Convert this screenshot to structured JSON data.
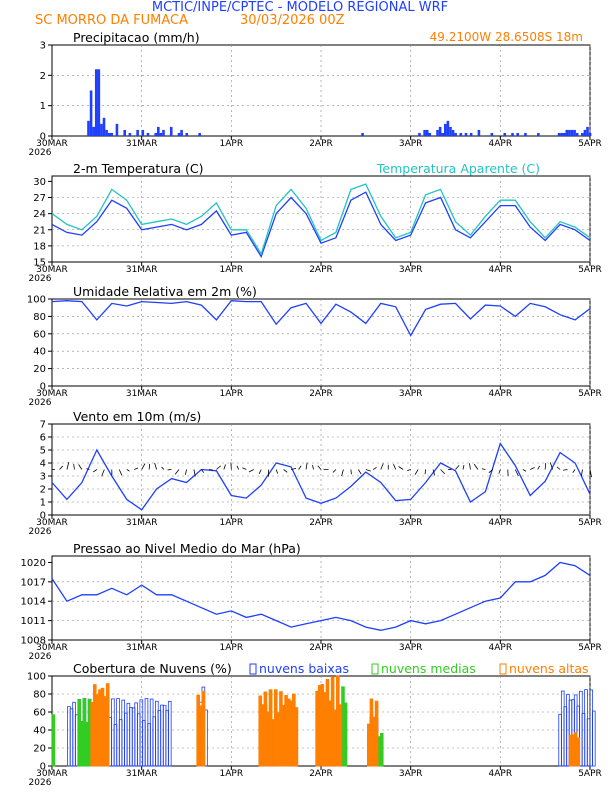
{
  "header": {
    "title": "MCTIC/INPE/CPTEC - MODELO REGIONAL WRF",
    "location": "SC MORRO DA FUMACA",
    "run": "30/03/2026 00Z",
    "coords": "49.2100W 28.6508S 18m"
  },
  "colors": {
    "title": "#1f3fff",
    "orange": "#ff7f00",
    "blue": "#1f3fff",
    "cyan": "#22c3c3",
    "green": "#33cc22",
    "grid": "#888888"
  },
  "x_axis": {
    "labels": [
      "30MAR",
      "31MAR",
      "1APR",
      "2APR",
      "3APR",
      "4APR",
      "5APR"
    ],
    "year": "2026",
    "hours": 144
  },
  "chart_data": [
    {
      "id": "precip",
      "type": "bar",
      "title": "Precipitacao (mm/h)",
      "ylim": [
        0,
        3
      ],
      "yticks": [
        0,
        1,
        2,
        3
      ],
      "x": [
        14,
        15,
        16,
        17,
        18,
        19,
        20,
        21,
        22,
        23,
        25,
        28,
        30,
        33,
        35,
        37,
        40,
        41,
        42,
        43,
        46,
        49,
        50,
        52,
        57,
        120,
        142,
        144,
        145,
        146,
        149,
        150,
        151,
        152,
        153,
        154,
        155,
        156,
        158,
        160,
        162,
        165,
        170,
        175,
        178,
        180,
        183,
        188,
        196,
        197,
        198,
        199,
        200,
        201,
        202,
        203,
        205,
        206,
        207,
        208
      ],
      "values": [
        0.5,
        1.5,
        0.3,
        2.2,
        2.2,
        0.4,
        0.6,
        0.2,
        0.1,
        0.1,
        0.4,
        0.2,
        0.1,
        0.2,
        0.2,
        0.1,
        0.1,
        0.3,
        0.1,
        0.2,
        0.3,
        0.1,
        0.2,
        0.1,
        0.1,
        0.1,
        0.1,
        0.2,
        0.2,
        0.1,
        0.2,
        0.3,
        0.1,
        0.4,
        0.5,
        0.3,
        0.2,
        0.1,
        0.1,
        0.1,
        0.1,
        0.2,
        0.1,
        0.1,
        0.1,
        0.1,
        0.1,
        0.1,
        0.1,
        0.1,
        0.1,
        0.2,
        0.2,
        0.2,
        0.2,
        0.1,
        0.1,
        0.2,
        0.3,
        0.1
      ]
    },
    {
      "id": "temp",
      "type": "line",
      "title": "2-m Temperatura (C)",
      "legend_right": "Temperatura Aparente (C)",
      "ylim": [
        15,
        31
      ],
      "yticks": [
        15,
        18,
        21,
        24,
        27,
        30
      ],
      "series": [
        {
          "name": "2-m Temperatura (C)",
          "color": "blue",
          "x": [
            0,
            4,
            8,
            12,
            16,
            20,
            24,
            28,
            32,
            36,
            40,
            44,
            48,
            52,
            56,
            60,
            64,
            68,
            72,
            76,
            80,
            84,
            88,
            92,
            96,
            100,
            104,
            108,
            112,
            116,
            120,
            124,
            128,
            132,
            136,
            140,
            144
          ],
          "values": [
            22,
            20.5,
            20,
            22.5,
            26.5,
            25,
            21,
            21.5,
            22,
            21,
            22,
            24.5,
            20,
            20.5,
            16,
            24,
            27,
            24,
            18.5,
            19.5,
            26.5,
            28,
            22,
            19,
            20,
            26,
            27,
            21,
            19.5,
            22.5,
            25.5,
            25.5,
            21.5,
            19,
            22,
            21,
            19
          ]
        },
        {
          "name": "Temperatura Aparente (C)",
          "color": "cyan",
          "x": [
            0,
            4,
            8,
            12,
            16,
            20,
            24,
            28,
            32,
            36,
            40,
            44,
            48,
            52,
            56,
            60,
            64,
            68,
            72,
            76,
            80,
            84,
            88,
            92,
            96,
            100,
            104,
            108,
            112,
            116,
            120,
            124,
            128,
            132,
            136,
            140,
            144
          ],
          "values": [
            24,
            22,
            21,
            23.5,
            28.5,
            26.5,
            22,
            22.5,
            23,
            22,
            23.5,
            26,
            21,
            21,
            16.5,
            25.5,
            28.5,
            25,
            19,
            20.5,
            28.5,
            29.5,
            23.5,
            19.5,
            20.5,
            27.5,
            28.5,
            22.5,
            20,
            23.5,
            26.5,
            26.5,
            22.5,
            19.5,
            22.5,
            21.5,
            19.5
          ]
        }
      ]
    },
    {
      "id": "humidity",
      "type": "line",
      "title": "Umidade Relativa em 2m (%)",
      "ylim": [
        0,
        100
      ],
      "yticks": [
        0,
        20,
        40,
        60,
        80,
        100
      ],
      "series": [
        {
          "name": "Umidade Relativa em 2m (%)",
          "color": "blue",
          "x": [
            0,
            4,
            8,
            12,
            16,
            20,
            24,
            28,
            32,
            36,
            40,
            44,
            48,
            52,
            56,
            60,
            64,
            68,
            72,
            76,
            80,
            84,
            88,
            92,
            96,
            100,
            104,
            108,
            112,
            116,
            120,
            124,
            128,
            132,
            136,
            140,
            144
          ],
          "values": [
            97,
            98,
            97,
            76,
            95,
            92,
            97,
            96,
            95,
            97,
            93,
            76,
            98,
            97,
            97,
            71,
            90,
            95,
            72,
            94,
            85,
            72,
            95,
            91,
            58,
            88,
            94,
            95,
            77,
            93,
            92,
            80,
            95,
            91,
            82,
            76,
            89
          ]
        }
      ]
    },
    {
      "id": "wind",
      "type": "line",
      "title": "Vento em 10m (m/s)",
      "ylim": [
        0,
        7
      ],
      "yticks": [
        0,
        1,
        2,
        3,
        4,
        5,
        6,
        7
      ],
      "arrow_level": 3.5,
      "series": [
        {
          "name": "Vento em 10m (m/s)",
          "color": "blue",
          "x": [
            0,
            4,
            8,
            12,
            16,
            20,
            24,
            28,
            32,
            36,
            40,
            44,
            48,
            52,
            56,
            60,
            64,
            68,
            72,
            76,
            80,
            84,
            88,
            92,
            96,
            100,
            104,
            108,
            112,
            116,
            120,
            124,
            128,
            132,
            136,
            140,
            144
          ],
          "values": [
            2.5,
            1.2,
            2.5,
            5,
            3,
            1.2,
            0.4,
            2,
            2.8,
            2.5,
            3.5,
            3.4,
            1.5,
            1.3,
            2.3,
            4,
            3.7,
            1.3,
            0.9,
            1.3,
            2.2,
            3.3,
            2.5,
            1.1,
            1.2,
            2.5,
            4,
            3.4,
            1,
            1.8,
            5.5,
            3.8,
            1.5,
            2.6,
            4.8,
            4,
            1.6
          ]
        }
      ]
    },
    {
      "id": "pressure",
      "type": "line",
      "title": "Pressao ao Nivel Medio do Mar (hPa)",
      "ylim": [
        1008,
        1021
      ],
      "yticks": [
        1008,
        1011,
        1014,
        1017,
        1020
      ],
      "series": [
        {
          "name": "Pressao ao Nivel Medio do Mar (hPa)",
          "color": "blue",
          "x": [
            0,
            4,
            8,
            12,
            16,
            20,
            24,
            28,
            32,
            36,
            40,
            44,
            48,
            52,
            56,
            60,
            64,
            68,
            72,
            76,
            80,
            84,
            88,
            92,
            96,
            100,
            104,
            108,
            112,
            116,
            120,
            124,
            128,
            132,
            136,
            140,
            144
          ],
          "values": [
            1017.5,
            1014,
            1015,
            1015,
            1016,
            1015,
            1016.5,
            1015,
            1015,
            1014,
            1013,
            1012,
            1012.5,
            1011.5,
            1012,
            1011,
            1010,
            1010.5,
            1011,
            1011.5,
            1011,
            1010,
            1009.5,
            1010,
            1011,
            1010.5,
            1011,
            1012,
            1013,
            1014,
            1014.5,
            1017,
            1017,
            1018,
            1020,
            1019.5,
            1018
          ]
        }
      ]
    },
    {
      "id": "clouds",
      "type": "bar",
      "title": "Cobertura de Nuvens (%)",
      "ylim": [
        0,
        100
      ],
      "yticks": [
        0,
        20,
        40,
        60,
        80,
        100
      ],
      "legend": [
        "nuvens baixas",
        "nuvens medias",
        "nuvens altas"
      ],
      "series": [
        {
          "name": "nuvens baixas",
          "color": "blue",
          "segments": [
            [
              6,
              46,
              75
            ],
            [
              57,
              60,
              90
            ],
            [
              82,
              84,
              70
            ],
            [
              110,
              112,
              60
            ],
            [
              122,
              126,
              55
            ],
            [
              196,
              210,
              85
            ]
          ]
        },
        {
          "name": "nuvens medias",
          "color": "green",
          "segments": [
            [
              0,
              1,
              95
            ],
            [
              10,
              18,
              75
            ],
            [
              84,
              86,
              85
            ],
            [
              87,
              92,
              60
            ],
            [
              112,
              114,
              90
            ],
            [
              124,
              128,
              40
            ]
          ]
        },
        {
          "name": "nuvens altas",
          "color": "orange",
          "segments": [
            [
              15,
              22,
              95
            ],
            [
              56,
              59,
              85
            ],
            [
              80,
              95,
              85
            ],
            [
              102,
              112,
              100
            ],
            [
              122,
              126,
              75
            ],
            [
              200,
              204,
              40
            ]
          ]
        }
      ]
    }
  ]
}
